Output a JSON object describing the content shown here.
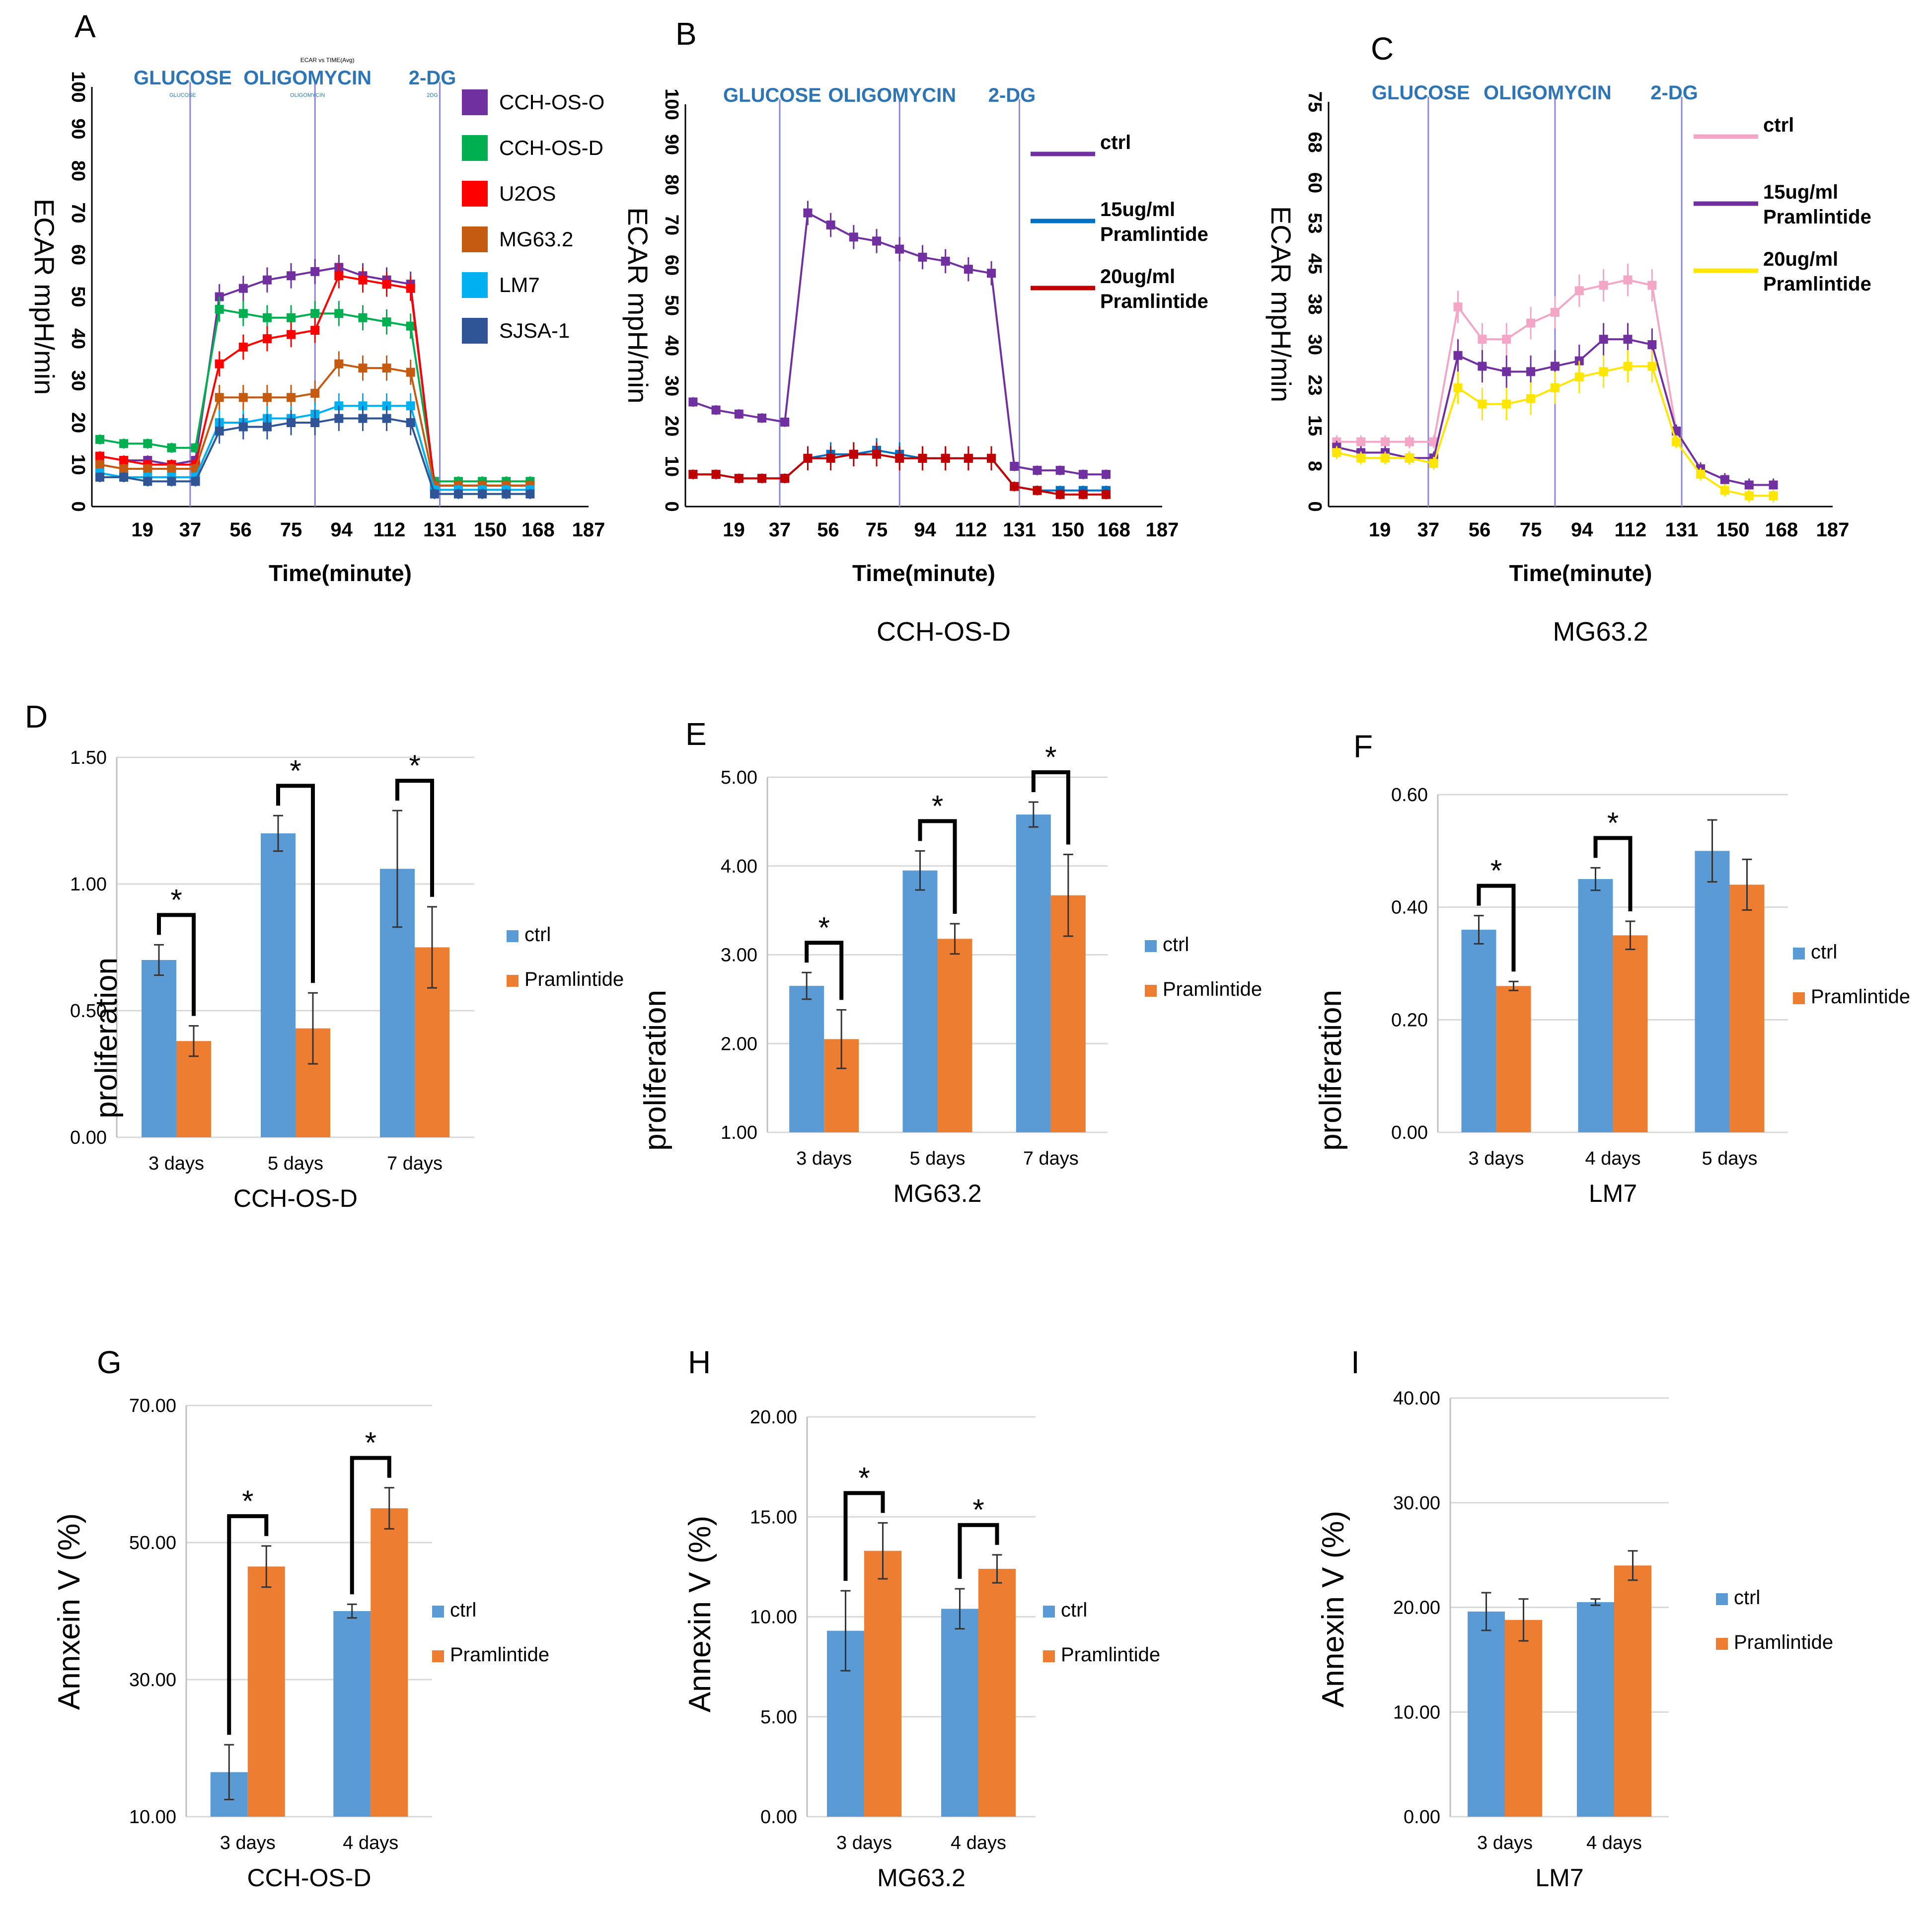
{
  "figure": {
    "x_tick_labels": [
      "19",
      "37",
      "56",
      "75",
      "94",
      "112",
      "131",
      "150",
      "168",
      "187"
    ],
    "time_axis_label": "Time(minute)",
    "ecar_axis_label": "ECAR mpH/min",
    "prolif_axis_label": "proliferation",
    "annexin_axis_label": "Annxein V (%)",
    "legend_ctrl": "ctrl",
    "legend_pram": "Pramlintide",
    "significance_mark": "*",
    "injection_markers": [
      "GLUCOSE",
      "OLIGOMYCIN",
      "2-DG"
    ],
    "tiny_injection_labels": [
      "GLUCOSE",
      "OLIGOMYCIN",
      "2DG"
    ],
    "panel_a_small_title": "ECAR vs TIME(Avg)"
  },
  "colors": {
    "ctrl_bar": "#5B9BD5",
    "pram_bar": "#ED7D31",
    "injection_line": "#8E86DB",
    "injection_text": "#2E75B6",
    "grid": "#D9D9D9"
  },
  "chart_data": [
    {
      "panel": "A",
      "type": "line",
      "title": "",
      "subtitle": "",
      "xlabel": "Time(minute)",
      "ylabel": "ECAR mpH/min",
      "xlim": [
        0,
        187
      ],
      "ylim": [
        0,
        100
      ],
      "yticks": [
        "0",
        "10",
        "20",
        "30",
        "40",
        "50",
        "60",
        "70",
        "80",
        "90",
        "100"
      ],
      "x": [
        3,
        12,
        21,
        30,
        39,
        48,
        57,
        66,
        75,
        84,
        93,
        102,
        111,
        120,
        129,
        138,
        147,
        156,
        165
      ],
      "series": [
        {
          "name": "CCH-OS-O",
          "color": "#7030A0",
          "values": [
            12,
            11,
            11,
            10,
            11,
            50,
            52,
            54,
            55,
            56,
            57,
            55,
            54,
            53,
            5,
            5,
            5,
            5,
            5
          ]
        },
        {
          "name": "CCH-OS-D",
          "color": "#00B050",
          "values": [
            16,
            15,
            15,
            14,
            14,
            47,
            46,
            45,
            45,
            46,
            46,
            45,
            44,
            43,
            6,
            6,
            6,
            6,
            6
          ]
        },
        {
          "name": "U2OS",
          "color": "#FF0000",
          "values": [
            12,
            11,
            10,
            10,
            10,
            34,
            38,
            40,
            41,
            42,
            55,
            54,
            53,
            52,
            5,
            5,
            5,
            5,
            5
          ]
        },
        {
          "name": "MG63.2",
          "color": "#C55A11",
          "values": [
            10,
            9,
            9,
            9,
            9,
            26,
            26,
            26,
            26,
            27,
            34,
            33,
            33,
            32,
            5,
            5,
            5,
            5,
            5
          ]
        },
        {
          "name": "LM7",
          "color": "#00B0F0",
          "values": [
            8,
            7,
            7,
            7,
            7,
            20,
            20,
            21,
            21,
            22,
            24,
            24,
            24,
            24,
            4,
            4,
            4,
            4,
            4
          ]
        },
        {
          "name": "SJSA-1",
          "color": "#2F5597",
          "values": [
            7,
            7,
            6,
            6,
            6,
            18,
            19,
            19,
            20,
            20,
            21,
            21,
            21,
            20,
            3,
            3,
            3,
            3,
            3
          ]
        }
      ],
      "legend": "right",
      "injections": [
        {
          "label": "GLUCOSE",
          "x": 37
        },
        {
          "label": "OLIGOMYCIN",
          "x": 84
        },
        {
          "label": "2-DG",
          "x": 131
        }
      ]
    },
    {
      "panel": "B",
      "type": "line",
      "title": "CCH-OS-D",
      "xlabel": "Time(minute)",
      "ylabel": "ECAR mpH/min",
      "xlim": [
        0,
        187
      ],
      "ylim": [
        0,
        100
      ],
      "yticks": [
        "0",
        "10",
        "20",
        "30",
        "40",
        "50",
        "60",
        "70",
        "80",
        "90",
        "100"
      ],
      "x": [
        3,
        12,
        21,
        30,
        39,
        48,
        57,
        66,
        75,
        84,
        93,
        102,
        111,
        120,
        129,
        138,
        147,
        156,
        165
      ],
      "series": [
        {
          "name": "ctrl",
          "color": "#7030A0",
          "values": [
            26,
            24,
            23,
            22,
            21,
            73,
            70,
            67,
            66,
            64,
            62,
            61,
            59,
            58,
            10,
            9,
            9,
            8,
            8
          ]
        },
        {
          "name": "15ug/ml Pramlintide",
          "color": "#0070C0",
          "values": [
            8,
            8,
            7,
            7,
            7,
            12,
            13,
            13,
            14,
            13,
            12,
            12,
            12,
            12,
            5,
            4,
            4,
            4,
            4
          ]
        },
        {
          "name": "20ug/ml Pramlintide",
          "color": "#C00000",
          "values": [
            8,
            8,
            7,
            7,
            7,
            12,
            12,
            13,
            13,
            12,
            12,
            12,
            12,
            12,
            5,
            4,
            3,
            3,
            3
          ]
        }
      ],
      "legend": "right",
      "injections": [
        {
          "label": "GLUCOSE",
          "x": 37
        },
        {
          "label": "OLIGOMYCIN",
          "x": 84
        },
        {
          "label": "2-DG",
          "x": 131
        }
      ]
    },
    {
      "panel": "C",
      "type": "line",
      "title": "MG63.2",
      "xlabel": "Time(minute)",
      "ylabel": "ECAR mpH/min",
      "xlim": [
        0,
        187
      ],
      "ylim": [
        0,
        75
      ],
      "yticks": [
        "0",
        "8",
        "15",
        "23",
        "30",
        "38",
        "45",
        "53",
        "60",
        "68",
        "75"
      ],
      "x": [
        3,
        12,
        21,
        30,
        39,
        48,
        57,
        66,
        75,
        84,
        93,
        102,
        111,
        120,
        129,
        138,
        147,
        156,
        165
      ],
      "series": [
        {
          "name": "ctrl",
          "color": "#F4A6C7",
          "values": [
            12,
            12,
            12,
            12,
            12,
            37,
            31,
            31,
            34,
            36,
            40,
            41,
            42,
            41,
            14,
            7,
            5,
            4,
            4
          ]
        },
        {
          "name": "15ug/ml Pramlintide",
          "color": "#7030A0",
          "values": [
            11,
            10,
            10,
            9,
            9,
            28,
            26,
            25,
            25,
            26,
            27,
            31,
            31,
            30,
            14,
            7,
            5,
            4,
            4
          ]
        },
        {
          "name": "20ug/ml Pramlintide",
          "color": "#FFE600",
          "values": [
            10,
            9,
            9,
            9,
            8,
            22,
            19,
            19,
            20,
            22,
            24,
            25,
            26,
            26,
            12,
            6,
            3,
            2,
            2
          ]
        }
      ],
      "legend": "right",
      "injections": [
        {
          "label": "GLUCOSE",
          "x": 37
        },
        {
          "label": "OLIGOMYCIN",
          "x": 84
        },
        {
          "label": "2-DG",
          "x": 131
        }
      ]
    },
    {
      "panel": "D",
      "type": "bar",
      "title": "CCH-OS-D",
      "xlabel": "CCH-OS-D",
      "ylabel": "proliferation",
      "categories": [
        "3 days",
        "5 days",
        "7 days"
      ],
      "ylim": [
        0,
        1.5
      ],
      "yticks": [
        "0.00",
        "0.50",
        "1.00",
        "1.50"
      ],
      "series": [
        {
          "name": "ctrl",
          "values": [
            0.7,
            1.2,
            1.06
          ],
          "errors": [
            0.06,
            0.07,
            0.23
          ]
        },
        {
          "name": "Pramlintide",
          "values": [
            0.38,
            0.43,
            0.75
          ],
          "errors": [
            0.06,
            0.14,
            0.16
          ]
        }
      ],
      "significant": [
        true,
        true,
        true
      ],
      "legend": "right"
    },
    {
      "panel": "E",
      "type": "bar",
      "title": "MG63.2",
      "xlabel": "MG63.2",
      "ylabel": "proliferation",
      "categories": [
        "3 days",
        "5 days",
        "7 days"
      ],
      "ylim": [
        1,
        5
      ],
      "yticks": [
        "1.00",
        "2.00",
        "3.00",
        "4.00",
        "5.00"
      ],
      "series": [
        {
          "name": "ctrl",
          "values": [
            2.65,
            3.95,
            4.58
          ],
          "errors": [
            0.15,
            0.22,
            0.14
          ]
        },
        {
          "name": "Pramlintide",
          "values": [
            2.05,
            3.18,
            3.67
          ],
          "errors": [
            0.33,
            0.17,
            0.46
          ]
        }
      ],
      "significant": [
        true,
        true,
        true
      ],
      "legend": "right"
    },
    {
      "panel": "F",
      "type": "bar",
      "title": "LM7",
      "xlabel": "LM7",
      "ylabel": "proliferation",
      "categories": [
        "3 days",
        "4 days",
        "5 days"
      ],
      "ylim": [
        0,
        0.6
      ],
      "yticks": [
        "0.00",
        "0.20",
        "0.40",
        "0.60"
      ],
      "series": [
        {
          "name": "ctrl",
          "values": [
            0.36,
            0.45,
            0.5
          ],
          "errors": [
            0.025,
            0.02,
            0.055
          ]
        },
        {
          "name": "Pramlintide",
          "values": [
            0.26,
            0.35,
            0.44
          ],
          "errors": [
            0.008,
            0.025,
            0.045
          ]
        }
      ],
      "significant": [
        true,
        true,
        false
      ],
      "legend": "right"
    },
    {
      "panel": "G",
      "type": "bar",
      "title": "CCH-OS-D",
      "xlabel": "CCH-OS-D",
      "ylabel": "Annxein V (%)",
      "categories": [
        "3 days",
        "4 days"
      ],
      "ylim": [
        10,
        70
      ],
      "yticks": [
        "10.00",
        "30.00",
        "50.00",
        "70.00"
      ],
      "series": [
        {
          "name": "ctrl",
          "values": [
            16.5,
            40
          ],
          "errors": [
            4,
            1
          ]
        },
        {
          "name": "Pramlintide",
          "values": [
            46.5,
            55
          ],
          "errors": [
            3,
            3
          ]
        }
      ],
      "significant": [
        true,
        true
      ],
      "legend": "right"
    },
    {
      "panel": "H",
      "type": "bar",
      "title": "MG63.2",
      "xlabel": "MG63.2",
      "ylabel": "Annexin V (%)",
      "categories": [
        "3 days",
        "4 days"
      ],
      "ylim": [
        0,
        20
      ],
      "yticks": [
        "0.00",
        "5.00",
        "10.00",
        "15.00",
        "20.00"
      ],
      "series": [
        {
          "name": "ctrl",
          "values": [
            9.3,
            10.4
          ],
          "errors": [
            2,
            1
          ]
        },
        {
          "name": "Pramlintide",
          "values": [
            13.3,
            12.4
          ],
          "errors": [
            1.4,
            0.7
          ]
        }
      ],
      "significant": [
        true,
        true
      ],
      "legend": "right"
    },
    {
      "panel": "I",
      "type": "bar",
      "title": "LM7",
      "xlabel": "LM7",
      "ylabel": "Annexin V (%)",
      "categories": [
        "3 days",
        "4 days"
      ],
      "ylim": [
        0,
        40
      ],
      "yticks": [
        "0.00",
        "10.00",
        "20.00",
        "30.00",
        "40.00"
      ],
      "series": [
        {
          "name": "ctrl",
          "values": [
            19.6,
            20.5
          ],
          "errors": [
            1.8,
            0.3
          ]
        },
        {
          "name": "Pramlintide",
          "values": [
            18.8,
            24
          ],
          "errors": [
            2,
            1.4
          ]
        }
      ],
      "significant": [
        false,
        false
      ],
      "legend": "right"
    }
  ]
}
